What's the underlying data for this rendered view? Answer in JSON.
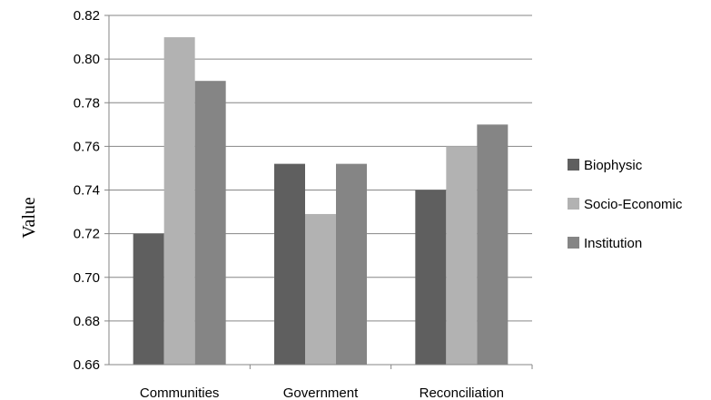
{
  "chart_data": {
    "type": "bar",
    "categories": [
      "Communities",
      "Government",
      "Reconciliation"
    ],
    "series": [
      {
        "name": "Biophysic",
        "values": [
          0.72,
          0.752,
          0.74
        ],
        "color": "#5f5f5f"
      },
      {
        "name": "Socio-Economic",
        "values": [
          0.81,
          0.729,
          0.76
        ],
        "color": "#b2b2b2"
      },
      {
        "name": "Institution",
        "values": [
          0.79,
          0.752,
          0.77
        ],
        "color": "#858585"
      }
    ],
    "yticks": [
      "0.66",
      "0.68",
      "0.70",
      "0.72",
      "0.74",
      "0.76",
      "0.78",
      "0.80",
      "0.82"
    ],
    "ylim": [
      0.66,
      0.82
    ],
    "ylabel": "Value",
    "xlabel": "",
    "grid": true,
    "legend_position": "right"
  }
}
